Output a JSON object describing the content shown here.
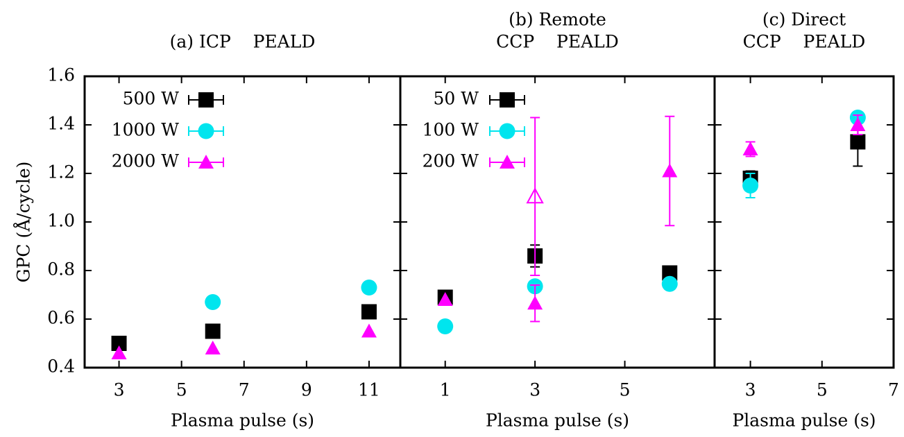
{
  "chart_data": [
    {
      "type": "scatter",
      "title": "(a) ICP    PEALD",
      "x_label": "Plasma pulse (s)",
      "y_label": "GPC (Å/cycle)",
      "xlim": [
        1.9,
        12
      ],
      "xticks": [
        3,
        5,
        7,
        9,
        11
      ],
      "ylim": [
        0.4,
        1.6
      ],
      "yticks": [
        {
          "value": 0.4,
          "label": "0.4"
        },
        {
          "value": 0.6,
          "label": "0.6"
        },
        {
          "value": 0.8,
          "label": "0.8"
        },
        {
          "value": 1.0,
          "label": "1.0"
        },
        {
          "value": 1.2,
          "label": "1.2"
        },
        {
          "value": 1.4,
          "label": "1.4"
        },
        {
          "value": 1.6,
          "label": "1.6"
        }
      ],
      "show_ytick_labels": true,
      "legend": "upper left",
      "series": [
        {
          "name": "500 W",
          "color": "#000000",
          "marker": "square",
          "x": [
            3,
            6,
            11
          ],
          "values": [
            0.5,
            0.55,
            0.63
          ],
          "errors": [
            null,
            null,
            null
          ]
        },
        {
          "name": "1000 W",
          "color": "#00e5ee",
          "marker": "circle",
          "x": [
            6,
            11
          ],
          "values": [
            0.67,
            0.73
          ],
          "errors": [
            null,
            null
          ]
        },
        {
          "name": "2000 W",
          "color": "#ff00ff",
          "marker": "triangle",
          "x": [
            3,
            6,
            11
          ],
          "values": [
            0.46,
            0.48,
            0.55
          ],
          "errors": [
            null,
            null,
            null
          ]
        }
      ]
    },
    {
      "type": "scatter",
      "title": "(b) Remote",
      "subtitle": "CCP    PEALD",
      "x_label": "Plasma pulse (s)",
      "xlim": [
        0,
        7
      ],
      "xticks": [
        1,
        3,
        5
      ],
      "ylim": [
        0.4,
        1.6
      ],
      "yticks": [
        0.4,
        0.6,
        0.8,
        1.0,
        1.2,
        1.4,
        1.6
      ],
      "show_ytick_labels": false,
      "legend": "upper left",
      "series": [
        {
          "name": "50 W",
          "color": "#000000",
          "marker": "square",
          "x": [
            1,
            3,
            6
          ],
          "values": [
            0.69,
            0.86,
            0.79
          ],
          "errors": [
            null,
            0.045,
            null
          ]
        },
        {
          "name": "100 W",
          "color": "#00e5ee",
          "marker": "circle",
          "x": [
            1,
            3,
            6
          ],
          "values": [
            0.57,
            0.735,
            0.745
          ],
          "errors": [
            null,
            null,
            null
          ]
        },
        {
          "name": "200 W",
          "color": "#ff00ff",
          "marker": "triangle",
          "x": [
            1,
            3,
            6
          ],
          "values": [
            0.68,
            0.665,
            1.21
          ],
          "errors": [
            null,
            0.075,
            0.225
          ],
          "hollow": {
            "x": [
              3
            ],
            "values": [
              1.105
            ],
            "errors": [
              0.325
            ]
          }
        }
      ]
    },
    {
      "type": "scatter",
      "title": "(c) Direct",
      "subtitle": "CCP    PEALD",
      "x_label": "Plasma pulse (s)",
      "xlim": [
        2,
        7
      ],
      "xticks": [
        3,
        5,
        7
      ],
      "ylim": [
        0.4,
        1.6
      ],
      "yticks": [
        0.4,
        0.6,
        0.8,
        1.0,
        1.2,
        1.4,
        1.6
      ],
      "show_ytick_labels": false,
      "legend": "none",
      "series": [
        {
          "marker": "square",
          "color": "#000000",
          "x": [
            3,
            6
          ],
          "values": [
            1.18,
            1.33
          ],
          "errors": [
            0.03,
            0.1
          ]
        },
        {
          "marker": "circle",
          "color": "#00e5ee",
          "x": [
            3,
            6
          ],
          "values": [
            1.15,
            1.43
          ],
          "errors": [
            0.05,
            0.01
          ]
        },
        {
          "marker": "triangle",
          "color": "#ff00ff",
          "x": [
            3,
            6
          ],
          "values": [
            1.3,
            1.4
          ],
          "errors": [
            0.03,
            0.04
          ]
        }
      ]
    }
  ]
}
